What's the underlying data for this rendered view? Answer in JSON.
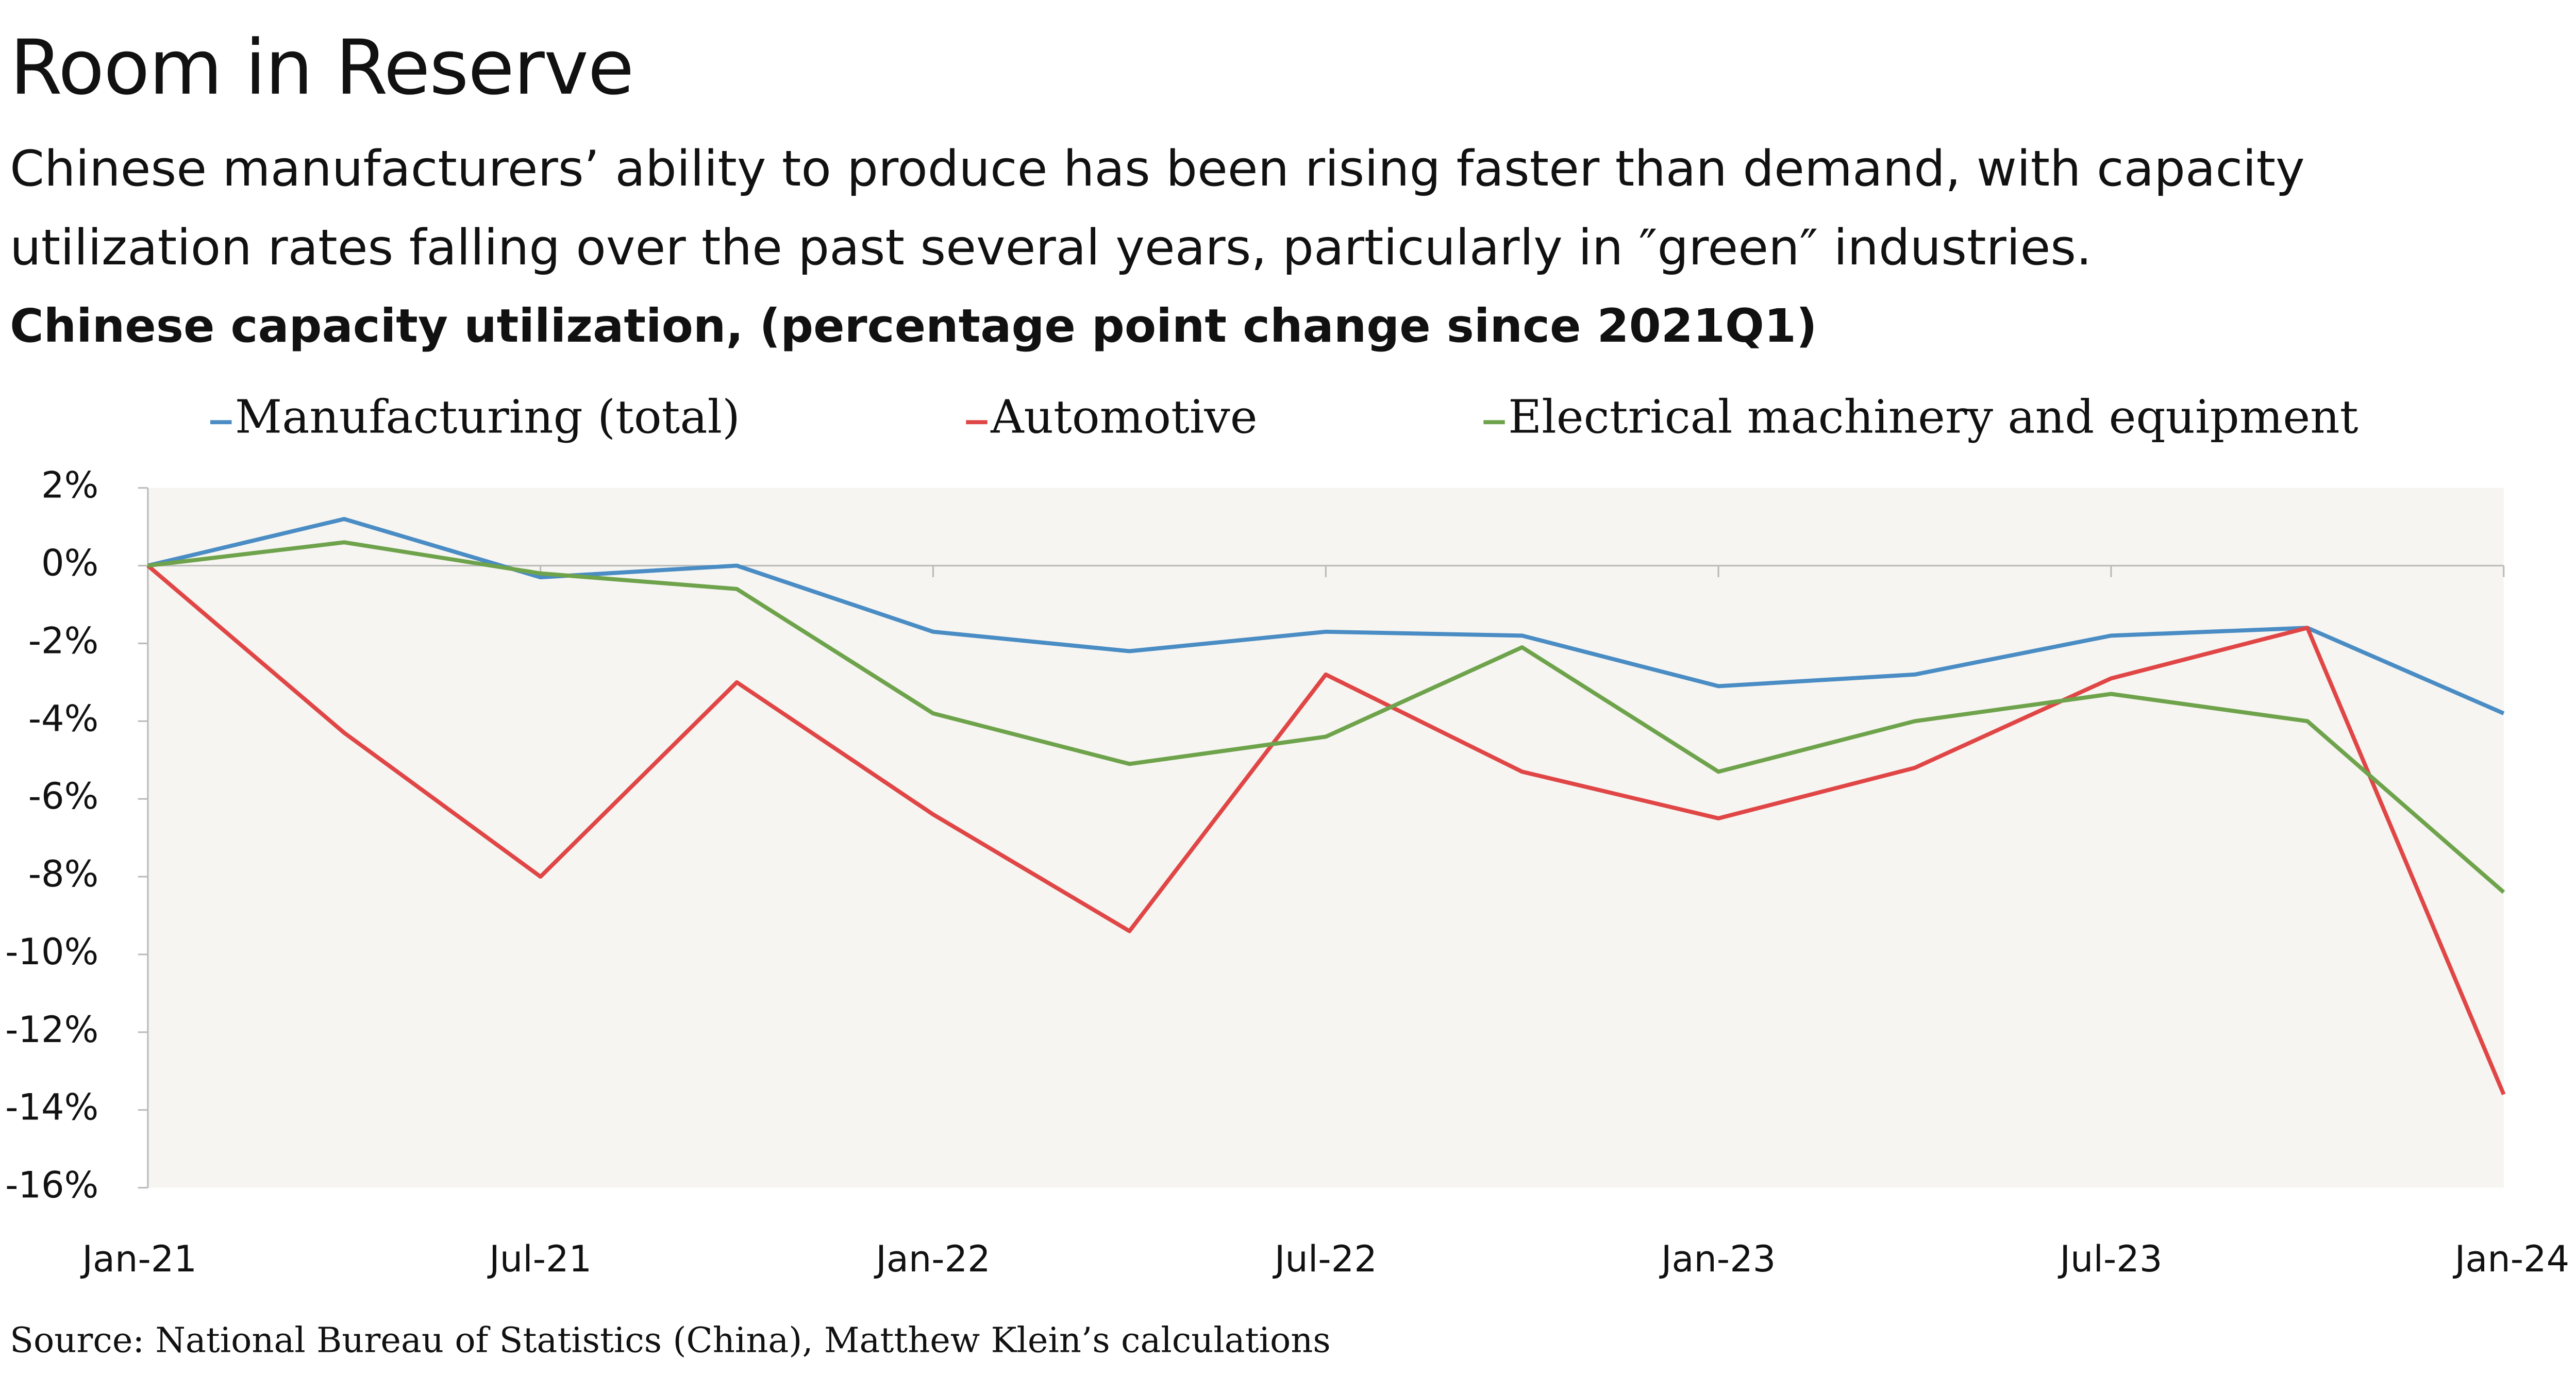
{
  "chart_data": {
    "type": "line",
    "title": "Room in Reserve",
    "subtitle": "Chinese manufacturers’ ability to produce has been rising faster than demand, with capacity utilization rates falling over the past several years, particularly in ″green″ industries.",
    "y_axis_title": "Chinese capacity utilization, (percentage point change since 2021Q1)",
    "source": "Source: National Bureau of Statistics (China), Matthew Klein’s calculations",
    "categories": [
      "Jan-21",
      null,
      "Jul-21",
      null,
      "Jan-22",
      null,
      "Jul-22",
      null,
      "Jan-23",
      null,
      "Jul-23",
      null,
      "Jan-24"
    ],
    "series": [
      {
        "name": "Manufacturing (total)",
        "color": "#4a8cc4",
        "values": [
          0,
          1.2,
          -0.3,
          0,
          -1.7,
          -2.2,
          -1.7,
          -1.8,
          -3.1,
          -2.8,
          -1.8,
          -1.6,
          -3.8
        ]
      },
      {
        "name": "Automotive",
        "color": "#e04646",
        "values": [
          0,
          -4.3,
          -8.0,
          -3.0,
          -6.4,
          -9.4,
          -2.8,
          -5.3,
          -6.5,
          -5.2,
          -2.9,
          -1.6,
          -13.6
        ]
      },
      {
        "name": "Electrical machinery and equipment",
        "color": "#6ea34c",
        "values": [
          0,
          0.6,
          -0.2,
          -0.6,
          -3.8,
          -5.1,
          -4.4,
          -2.1,
          -5.3,
          -4.0,
          -3.3,
          -4.0,
          -8.4
        ]
      }
    ],
    "ylim": [
      -16,
      2
    ],
    "yticks": [
      {
        "value": 2,
        "label": "2%"
      },
      {
        "value": 0,
        "label": "0%"
      },
      {
        "value": -2,
        "label": "-2%"
      },
      {
        "value": -4,
        "label": "-4%"
      },
      {
        "value": -6,
        "label": "-6%"
      },
      {
        "value": -8,
        "label": "-8%"
      },
      {
        "value": -10,
        "label": "-10%"
      },
      {
        "value": -12,
        "label": "-12%"
      },
      {
        "value": -14,
        "label": "-14%"
      },
      {
        "value": -16,
        "label": "-16%"
      }
    ],
    "legend": "top",
    "grid": false
  }
}
